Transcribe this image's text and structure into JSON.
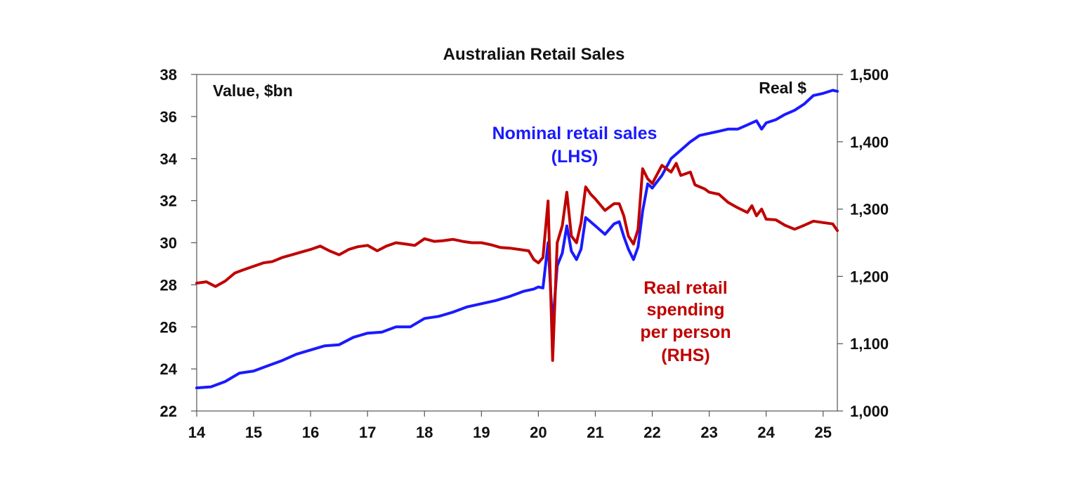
{
  "chart_data": {
    "type": "line",
    "title": "Australian Retail Sales",
    "left_axis_label": "Value, $bn",
    "right_axis_label": "Real $",
    "x_ticks": [
      "14",
      "15",
      "16",
      "17",
      "18",
      "19",
      "20",
      "21",
      "22",
      "23",
      "24",
      "25"
    ],
    "x_range": [
      2014.0,
      2025.25
    ],
    "y_left": {
      "min": 22,
      "max": 38,
      "ticks": [
        "22",
        "24",
        "26",
        "28",
        "30",
        "32",
        "34",
        "36",
        "38"
      ]
    },
    "y_right": {
      "min": 1000,
      "max": 1500,
      "ticks": [
        "1,000",
        "1,100",
        "1,200",
        "1,300",
        "1,400",
        "1,500"
      ]
    },
    "grid": false,
    "colors": {
      "nominal": "#1a1aff",
      "real": "#c00000"
    },
    "annotations": {
      "nominal": [
        "Nominal retail sales",
        "(LHS)"
      ],
      "real": [
        "Real retail",
        "spending",
        "per person",
        "(RHS)"
      ]
    },
    "series": [
      {
        "key": "nominal",
        "axis": "left",
        "points": [
          [
            2014.0,
            23.1
          ],
          [
            2014.25,
            23.15
          ],
          [
            2014.5,
            23.4
          ],
          [
            2014.75,
            23.8
          ],
          [
            2015.0,
            23.9
          ],
          [
            2015.25,
            24.15
          ],
          [
            2015.5,
            24.4
          ],
          [
            2015.75,
            24.7
          ],
          [
            2016.0,
            24.9
          ],
          [
            2016.25,
            25.1
          ],
          [
            2016.5,
            25.15
          ],
          [
            2016.75,
            25.5
          ],
          [
            2017.0,
            25.7
          ],
          [
            2017.25,
            25.75
          ],
          [
            2017.5,
            26.0
          ],
          [
            2017.75,
            26.0
          ],
          [
            2018.0,
            26.4
          ],
          [
            2018.25,
            26.5
          ],
          [
            2018.5,
            26.7
          ],
          [
            2018.75,
            26.95
          ],
          [
            2019.0,
            27.1
          ],
          [
            2019.25,
            27.25
          ],
          [
            2019.5,
            27.45
          ],
          [
            2019.75,
            27.7
          ],
          [
            2019.92,
            27.8
          ],
          [
            2020.0,
            27.9
          ],
          [
            2020.08,
            27.85
          ],
          [
            2020.17,
            30.0
          ],
          [
            2020.25,
            26.0
          ],
          [
            2020.33,
            28.9
          ],
          [
            2020.42,
            29.5
          ],
          [
            2020.5,
            30.8
          ],
          [
            2020.58,
            29.6
          ],
          [
            2020.67,
            29.2
          ],
          [
            2020.75,
            29.7
          ],
          [
            2020.83,
            31.2
          ],
          [
            2021.0,
            30.8
          ],
          [
            2021.17,
            30.4
          ],
          [
            2021.33,
            30.9
          ],
          [
            2021.42,
            31.0
          ],
          [
            2021.5,
            30.3
          ],
          [
            2021.58,
            29.7
          ],
          [
            2021.67,
            29.2
          ],
          [
            2021.75,
            29.8
          ],
          [
            2021.83,
            31.5
          ],
          [
            2021.92,
            32.8
          ],
          [
            2022.0,
            32.6
          ],
          [
            2022.17,
            33.2
          ],
          [
            2022.33,
            34.0
          ],
          [
            2022.5,
            34.4
          ],
          [
            2022.67,
            34.8
          ],
          [
            2022.83,
            35.1
          ],
          [
            2023.0,
            35.2
          ],
          [
            2023.17,
            35.3
          ],
          [
            2023.33,
            35.4
          ],
          [
            2023.5,
            35.4
          ],
          [
            2023.67,
            35.6
          ],
          [
            2023.83,
            35.8
          ],
          [
            2023.92,
            35.4
          ],
          [
            2024.0,
            35.7
          ],
          [
            2024.17,
            35.85
          ],
          [
            2024.33,
            36.1
          ],
          [
            2024.5,
            36.3
          ],
          [
            2024.67,
            36.6
          ],
          [
            2024.83,
            37.0
          ],
          [
            2025.0,
            37.1
          ],
          [
            2025.17,
            37.25
          ],
          [
            2025.25,
            37.2
          ]
        ]
      },
      {
        "key": "real",
        "axis": "right",
        "points": [
          [
            2014.0,
            1190
          ],
          [
            2014.17,
            1192
          ],
          [
            2014.33,
            1185
          ],
          [
            2014.5,
            1193
          ],
          [
            2014.67,
            1205
          ],
          [
            2014.83,
            1210
          ],
          [
            2015.0,
            1215
          ],
          [
            2015.17,
            1220
          ],
          [
            2015.33,
            1222
          ],
          [
            2015.5,
            1228
          ],
          [
            2015.67,
            1232
          ],
          [
            2015.83,
            1236
          ],
          [
            2016.0,
            1240
          ],
          [
            2016.17,
            1245
          ],
          [
            2016.33,
            1238
          ],
          [
            2016.5,
            1232
          ],
          [
            2016.67,
            1240
          ],
          [
            2016.83,
            1244
          ],
          [
            2017.0,
            1246
          ],
          [
            2017.17,
            1238
          ],
          [
            2017.33,
            1245
          ],
          [
            2017.5,
            1250
          ],
          [
            2017.67,
            1248
          ],
          [
            2017.83,
            1246
          ],
          [
            2018.0,
            1256
          ],
          [
            2018.17,
            1252
          ],
          [
            2018.33,
            1253
          ],
          [
            2018.5,
            1255
          ],
          [
            2018.67,
            1252
          ],
          [
            2018.83,
            1250
          ],
          [
            2019.0,
            1250
          ],
          [
            2019.17,
            1247
          ],
          [
            2019.33,
            1243
          ],
          [
            2019.5,
            1242
          ],
          [
            2019.67,
            1240
          ],
          [
            2019.83,
            1238
          ],
          [
            2019.92,
            1225
          ],
          [
            2020.0,
            1220
          ],
          [
            2020.08,
            1228
          ],
          [
            2020.17,
            1312
          ],
          [
            2020.25,
            1075
          ],
          [
            2020.33,
            1250
          ],
          [
            2020.42,
            1275
          ],
          [
            2020.5,
            1325
          ],
          [
            2020.58,
            1260
          ],
          [
            2020.67,
            1250
          ],
          [
            2020.75,
            1280
          ],
          [
            2020.83,
            1333
          ],
          [
            2020.92,
            1322
          ],
          [
            2021.0,
            1315
          ],
          [
            2021.17,
            1298
          ],
          [
            2021.33,
            1308
          ],
          [
            2021.42,
            1308
          ],
          [
            2021.5,
            1290
          ],
          [
            2021.58,
            1260
          ],
          [
            2021.67,
            1248
          ],
          [
            2021.75,
            1270
          ],
          [
            2021.83,
            1360
          ],
          [
            2021.92,
            1345
          ],
          [
            2022.0,
            1338
          ],
          [
            2022.17,
            1365
          ],
          [
            2022.33,
            1355
          ],
          [
            2022.42,
            1368
          ],
          [
            2022.5,
            1350
          ],
          [
            2022.67,
            1355
          ],
          [
            2022.75,
            1336
          ],
          [
            2022.92,
            1330
          ],
          [
            2023.0,
            1325
          ],
          [
            2023.17,
            1322
          ],
          [
            2023.33,
            1310
          ],
          [
            2023.5,
            1302
          ],
          [
            2023.67,
            1295
          ],
          [
            2023.75,
            1305
          ],
          [
            2023.83,
            1290
          ],
          [
            2023.92,
            1300
          ],
          [
            2024.0,
            1285
          ],
          [
            2024.17,
            1284
          ],
          [
            2024.33,
            1276
          ],
          [
            2024.5,
            1270
          ],
          [
            2024.67,
            1276
          ],
          [
            2024.83,
            1282
          ],
          [
            2025.0,
            1280
          ],
          [
            2025.17,
            1278
          ],
          [
            2025.25,
            1268
          ]
        ]
      }
    ]
  }
}
